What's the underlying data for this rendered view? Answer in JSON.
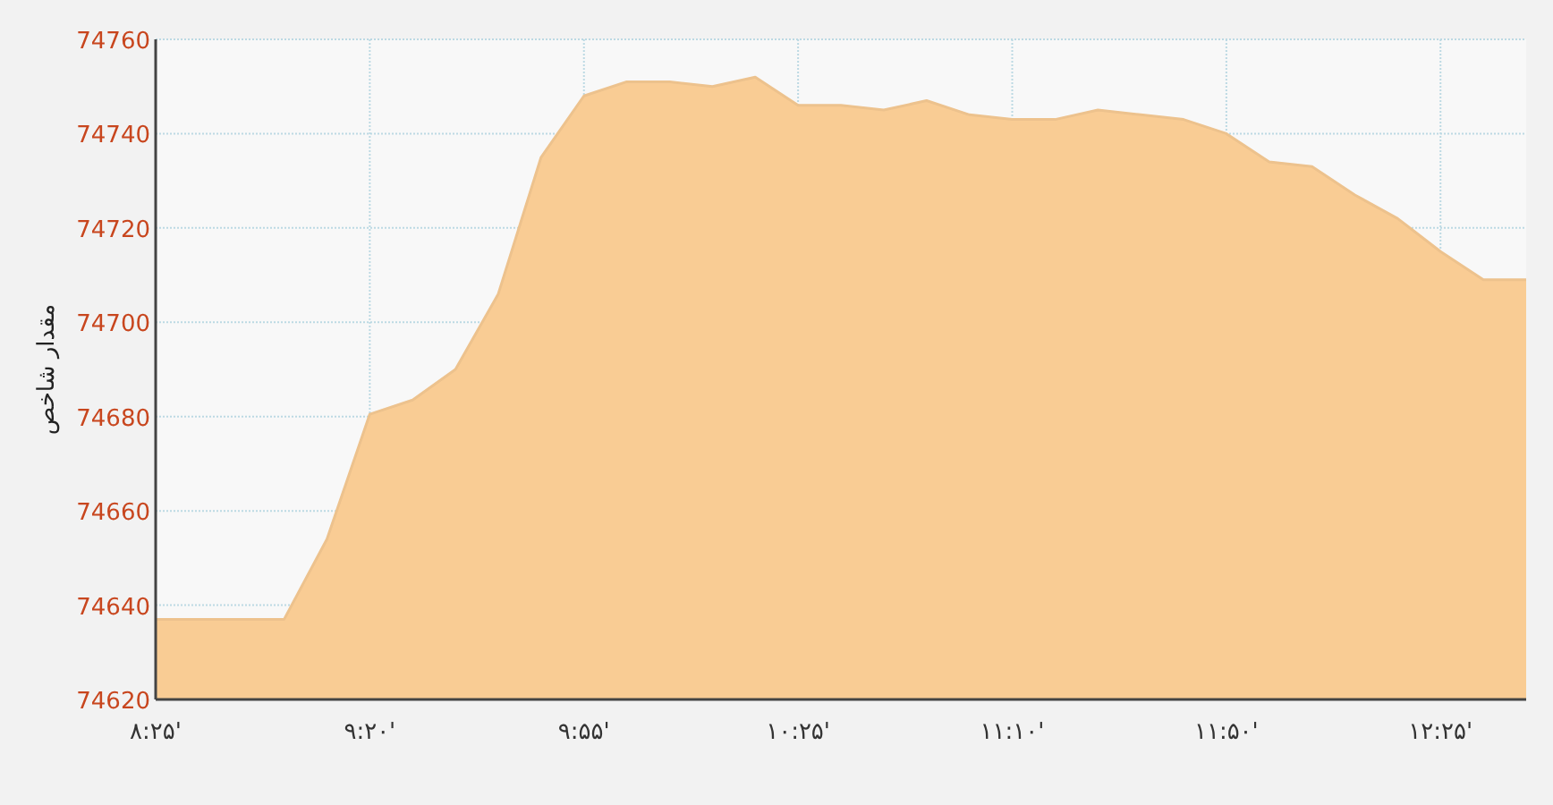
{
  "chart_data": {
    "type": "area",
    "ylabel": "مقدار شاخص",
    "categories": [
      "۸:۲۵'",
      null,
      null,
      null,
      null,
      "۹:۲۰'",
      null,
      null,
      null,
      null,
      "۹:۵۵'",
      null,
      null,
      null,
      null,
      "۱۰:۲۵'",
      null,
      null,
      null,
      null,
      "۱۱:۱۰'",
      null,
      null,
      null,
      null,
      "۱۱:۵۰'",
      null,
      null,
      null,
      null,
      "۱۲:۲۵'",
      null,
      null
    ],
    "values": [
      74637,
      74637,
      74637,
      74637,
      74654,
      74680.5,
      74683.5,
      74690,
      74706,
      74735,
      74748,
      74751,
      74751,
      74750,
      74752,
      74746,
      74746,
      74745,
      74747,
      74744,
      74743,
      74743,
      74745,
      74744,
      74743,
      74740,
      74734,
      74733,
      74727,
      74722,
      74715,
      74709,
      74709
    ],
    "color": "#f9cc94",
    "ylim": [
      74620,
      74760
    ],
    "yticks": [
      74620,
      74640,
      74660,
      74680,
      74700,
      74720,
      74740,
      74760
    ],
    "grid": true
  }
}
